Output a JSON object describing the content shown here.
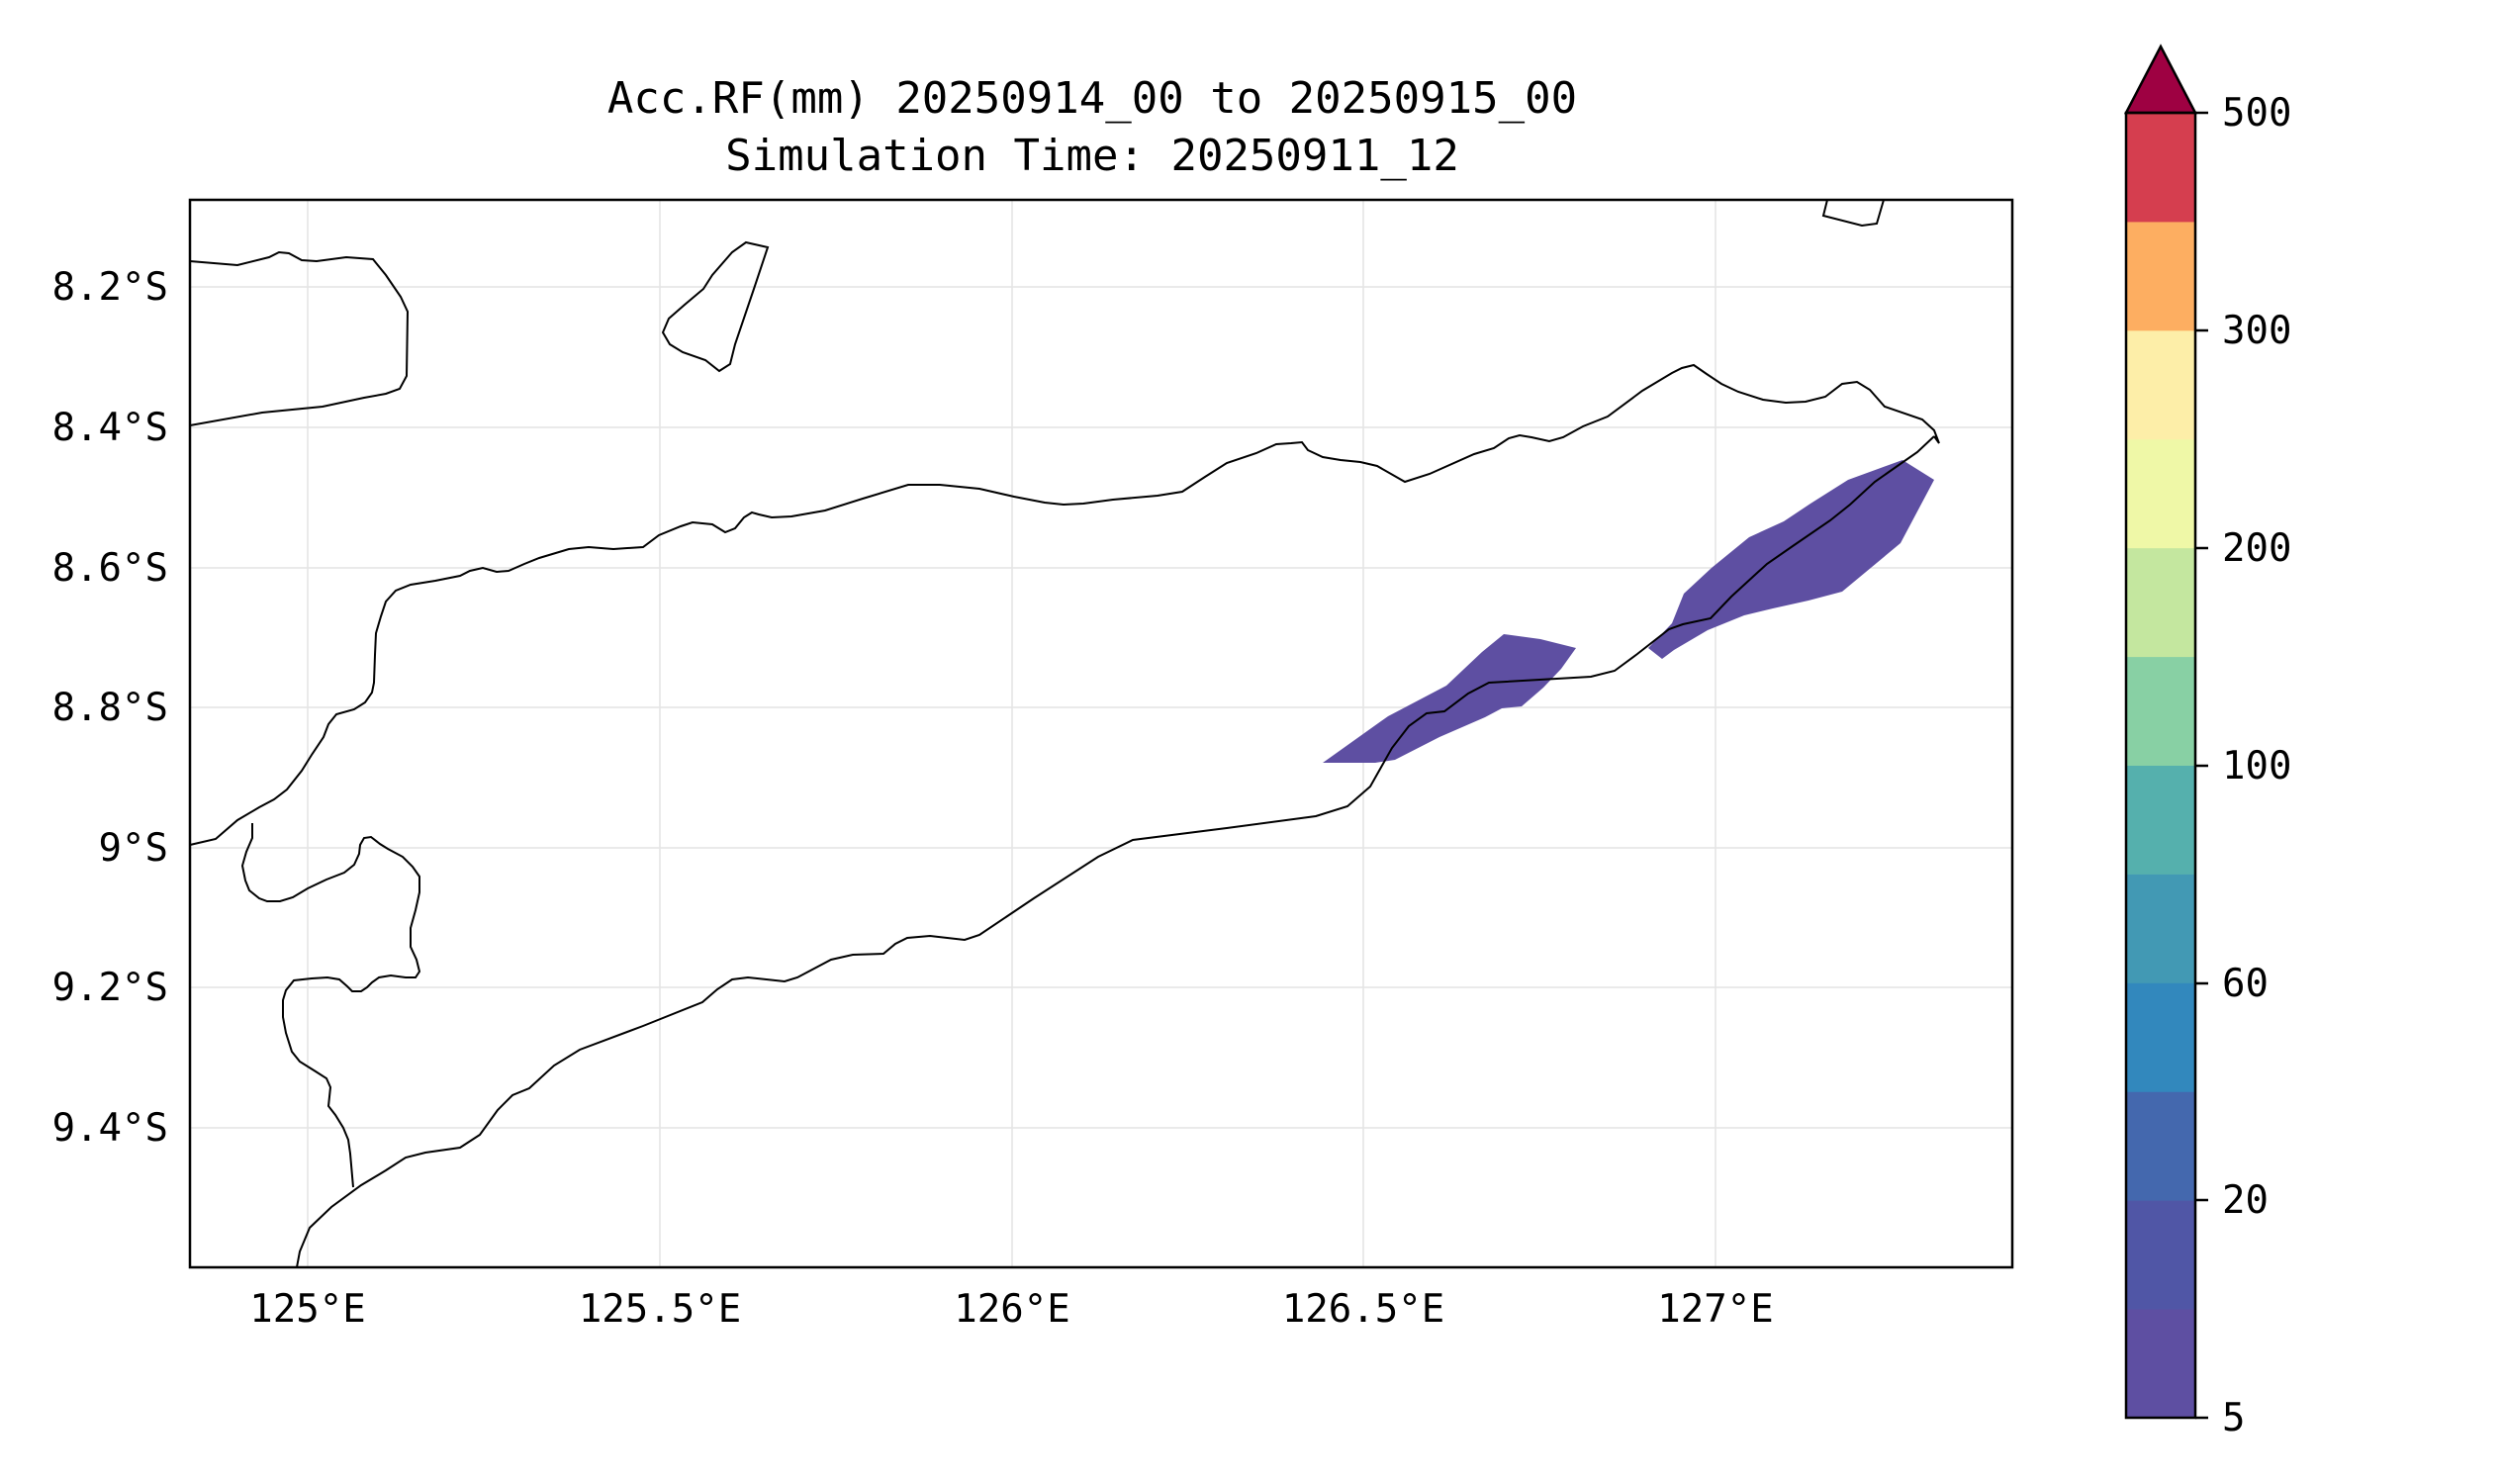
{
  "figure": {
    "title_line1": "Acc.RF(mm) 20250914_00 to 20250915_00",
    "title_line2": "Simulation Time: 20250911_12"
  },
  "axes": {
    "x_ticks": [
      "125°E",
      "125.5°E",
      "126°E",
      "126.5°E",
      "127°E"
    ],
    "y_ticks": [
      "8.2°S",
      "8.4°S",
      "8.6°S",
      "8.8°S",
      "9°S",
      "9.2°S",
      "9.4°S"
    ],
    "lon_range": [
      124.83,
      127.42
    ],
    "lat_range": [
      -9.58,
      -8.07
    ]
  },
  "colorbar": {
    "tick_labels": [
      "5",
      "20",
      "60",
      "100",
      "200",
      "300",
      "500"
    ],
    "levels": [
      5,
      10,
      20,
      40,
      60,
      80,
      100,
      150,
      200,
      250,
      300,
      350,
      500
    ],
    "colors": [
      "#5e4fa2",
      "#5056a6",
      "#4468ae",
      "#3288bd",
      "#4299b4",
      "#55b0ad",
      "#88d0a4",
      "#c4e79f",
      "#eff8a7",
      "#fdeea8",
      "#fdae61",
      "#d53e4f"
    ],
    "extend_color": "#9e0142",
    "extend": "max"
  },
  "rainfall_band_color": "#5e4fa2"
}
